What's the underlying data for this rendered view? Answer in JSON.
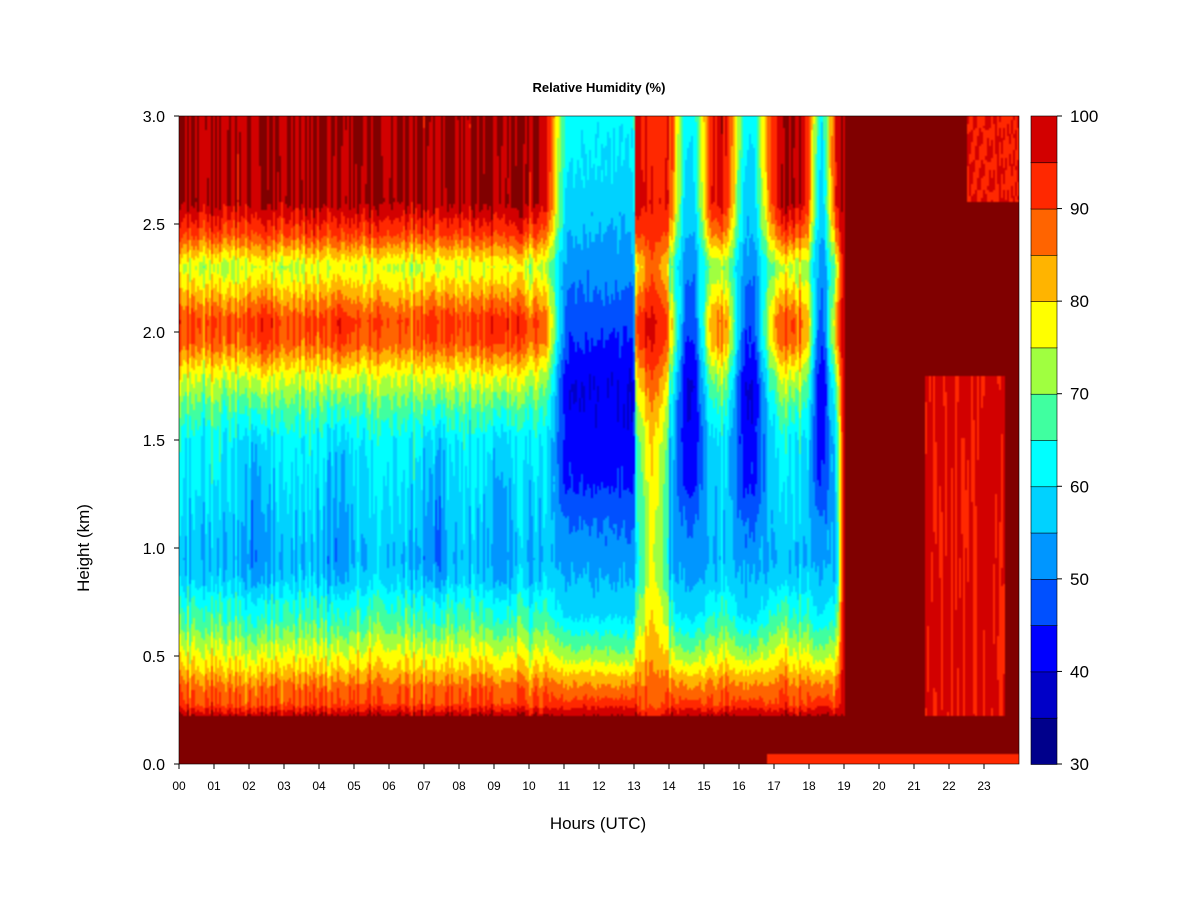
{
  "chart_data": {
    "type": "heatmap",
    "title": "Relative Humidity (%)",
    "xlabel": "Hours (UTC)",
    "ylabel": "Height (km)",
    "xlim": [
      0,
      24
    ],
    "ylim": [
      0.0,
      3.0
    ],
    "x_ticks": [
      "00",
      "01",
      "02",
      "03",
      "04",
      "05",
      "06",
      "07",
      "08",
      "09",
      "10",
      "11",
      "12",
      "13",
      "14",
      "15",
      "16",
      "17",
      "18",
      "19",
      "20",
      "21",
      "22",
      "23"
    ],
    "y_ticks": [
      "0.0",
      "0.5",
      "1.0",
      "1.5",
      "2.0",
      "2.5",
      "3.0"
    ],
    "colorbar": {
      "range": [
        30,
        100
      ],
      "tick_labels": [
        "30",
        "40",
        "50",
        "60",
        "70",
        "80",
        "90",
        "100"
      ],
      "levels": [
        30,
        35,
        40,
        45,
        50,
        55,
        60,
        65,
        70,
        75,
        80,
        85,
        90,
        95,
        100
      ],
      "colors": [
        "#00008b",
        "#0000c8",
        "#0000ff",
        "#0050ff",
        "#0096ff",
        "#00d2ff",
        "#00ffff",
        "#40ffa0",
        "#a0ff40",
        "#ffff00",
        "#ffb400",
        "#ff6400",
        "#ff2800",
        "#d20000",
        "#800000"
      ]
    },
    "description_regions": {
      "surface_layer_saturated_km": [
        0.0,
        0.22
      ],
      "morning_moist_layer_km": [
        1.8,
        2.5
      ],
      "dry_periods_hours": [
        [
          10.5,
          13.0
        ],
        [
          14.0,
          17.0
        ],
        [
          18.0,
          18.8
        ]
      ],
      "saturated_after_hour": 19
    }
  }
}
